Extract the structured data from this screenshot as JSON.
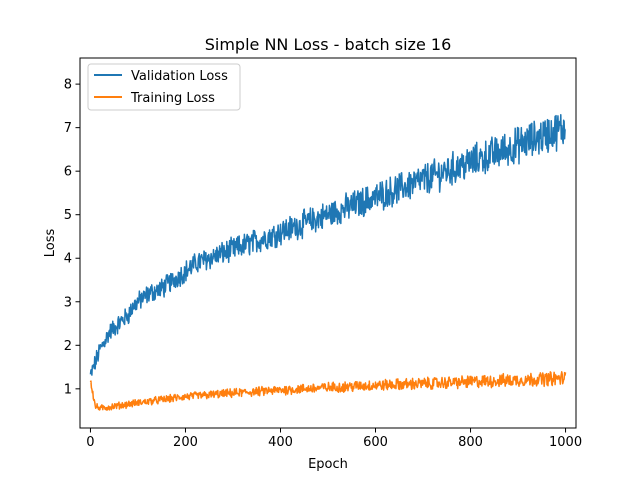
{
  "chart_data": {
    "type": "line",
    "title": "Simple NN Loss - batch size 16",
    "xlabel": "Epoch",
    "ylabel": "Loss",
    "xlim": [
      -22,
      1022
    ],
    "ylim": [
      0.1,
      8.6
    ],
    "xticks": [
      0,
      200,
      400,
      600,
      800,
      1000
    ],
    "yticks": [
      1,
      2,
      3,
      4,
      5,
      6,
      7,
      8
    ],
    "grid": false,
    "legend_position": "top-left",
    "series": [
      {
        "name": "Validation Loss",
        "color": "#1f77b4",
        "x": [
          0,
          10,
          20,
          30,
          40,
          50,
          60,
          70,
          80,
          90,
          100,
          125,
          150,
          175,
          200,
          225,
          250,
          275,
          300,
          350,
          400,
          450,
          500,
          550,
          600,
          650,
          700,
          750,
          800,
          850,
          900,
          950,
          1000
        ],
        "y": [
          1.3,
          1.6,
          1.9,
          2.1,
          2.3,
          2.4,
          2.5,
          2.6,
          2.7,
          2.9,
          3.0,
          3.2,
          3.3,
          3.5,
          3.7,
          3.9,
          4.0,
          4.1,
          4.2,
          4.4,
          4.6,
          4.8,
          5.0,
          5.2,
          5.4,
          5.6,
          5.8,
          6.0,
          6.2,
          6.4,
          6.6,
          6.8,
          7.0
        ],
        "noise": 0.35
      },
      {
        "name": "Training Loss",
        "color": "#ff7f0e",
        "x": [
          0,
          10,
          20,
          50,
          100,
          150,
          200,
          300,
          400,
          500,
          600,
          700,
          800,
          900,
          1000
        ],
        "y": [
          1.2,
          0.6,
          0.55,
          0.6,
          0.68,
          0.75,
          0.82,
          0.9,
          0.97,
          1.03,
          1.08,
          1.12,
          1.16,
          1.2,
          1.25
        ],
        "noise": 0.13
      }
    ]
  }
}
